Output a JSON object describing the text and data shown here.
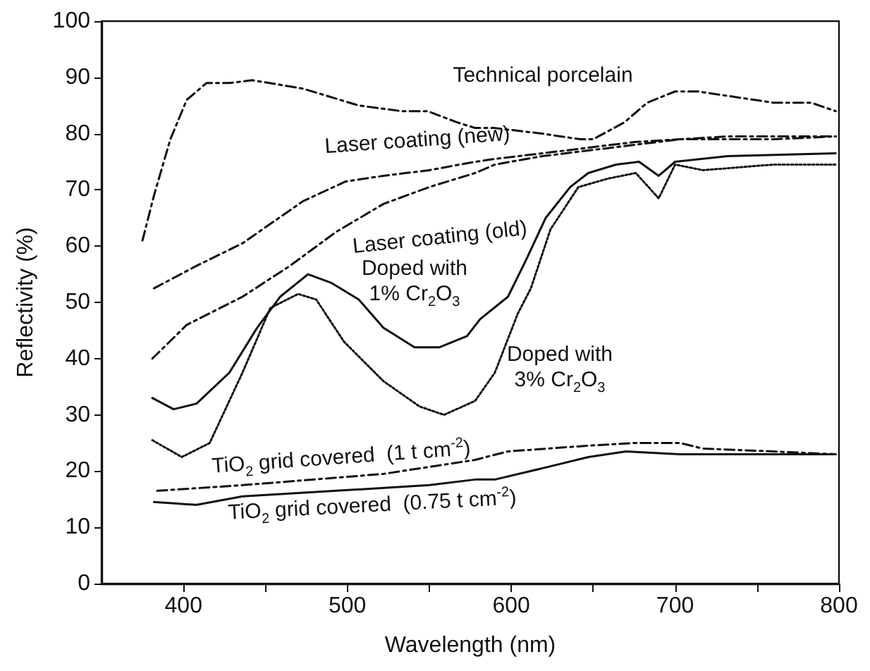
{
  "chart_data": {
    "type": "line",
    "xlabel": "Wavelength (nm)",
    "ylabel": "Reflectivity (%)",
    "xlim": [
      350,
      800
    ],
    "xticks": [
      {
        "value": 400,
        "label": "400"
      },
      {
        "value": 450,
        "label": null
      },
      {
        "value": 500,
        "label": "500"
      },
      {
        "value": 550,
        "label": null
      },
      {
        "value": 600,
        "label": "600"
      },
      {
        "value": 650,
        "label": null
      },
      {
        "value": 700,
        "label": "700"
      },
      {
        "value": 750,
        "label": null
      },
      {
        "value": 800,
        "label": "800"
      }
    ],
    "ylim": [
      0,
      100
    ],
    "yticks": [
      0,
      10,
      20,
      30,
      40,
      50,
      60,
      70,
      80,
      90,
      100
    ],
    "grid": false,
    "marker": "none",
    "series": [
      {
        "name": "Technical porcelain",
        "color": "#111111",
        "line_style": "dashed",
        "x": [
          375,
          382,
          392,
          402,
          414,
          428,
          442,
          473,
          507,
          533,
          549,
          567,
          578,
          590,
          619,
          642,
          650,
          669,
          683,
          700,
          714,
          737,
          760,
          783,
          798
        ],
        "values": [
          61,
          69,
          79,
          86,
          89,
          89,
          89.5,
          88,
          85,
          84,
          84,
          82,
          81,
          81,
          80,
          79,
          79,
          82,
          85.5,
          87.5,
          87.5,
          86.5,
          85.5,
          85.5,
          84
        ]
      },
      {
        "name": "Laser coating (new)",
        "color": "#111111",
        "line_style": "dashed",
        "x": [
          382,
          408,
          436,
          473,
          499,
          522,
          550,
          578,
          590,
          619,
          647,
          675,
          703,
          732,
          760,
          798
        ],
        "values": [
          52.5,
          56.5,
          60.5,
          68,
          71.5,
          72.5,
          73.5,
          75,
          75.5,
          76.5,
          77.5,
          78.5,
          79,
          79.5,
          79.5,
          79.5
        ]
      },
      {
        "name": "Laser coating (old)",
        "color": "#111111",
        "line_style": "dashed",
        "x": [
          381,
          402,
          436,
          465,
          493,
          522,
          550,
          578,
          590,
          619,
          647,
          675,
          703,
          732,
          760,
          798
        ],
        "values": [
          40,
          46,
          51,
          56.5,
          62.5,
          67.5,
          70.5,
          73,
          74.5,
          76,
          77,
          78,
          79,
          79,
          79,
          79.5
        ]
      },
      {
        "name": "Doped with\n1% Cr$_{2}$O$_{3}$",
        "color": "#111111",
        "line_style": "solid",
        "x": [
          381,
          394,
          408,
          428,
          445,
          459,
          476,
          490,
          507,
          522,
          541,
          556,
          573,
          581,
          598,
          609,
          621,
          636,
          647,
          664,
          678,
          690,
          700,
          732,
          798
        ],
        "values": [
          33,
          31,
          32,
          37.5,
          45.5,
          51,
          55,
          53.5,
          50.5,
          45.5,
          42,
          42,
          44,
          47,
          51,
          57.5,
          65,
          70.5,
          73,
          74.5,
          75,
          72.5,
          75,
          76,
          76.5
        ]
      },
      {
        "name": "Doped with\n3% Cr$_{2}$O$_{3}$",
        "color": "#111111",
        "line_style": "dotted",
        "x": [
          381,
          399,
          416,
          436,
          453,
          470,
          481,
          498,
          522,
          544,
          559,
          578,
          590,
          604,
          612,
          624,
          641,
          659,
          676,
          690,
          700,
          717,
          760,
          798
        ],
        "values": [
          25.5,
          22.5,
          25,
          37.5,
          49,
          51.5,
          50.5,
          43,
          36,
          31.5,
          30,
          32.5,
          37.5,
          48,
          52.5,
          63,
          70.5,
          72,
          73,
          68.5,
          74.5,
          73.5,
          74.5,
          74.5
        ]
      },
      {
        "name": "TiO$_{2}$ grid covered  (1 t cm$^{-2}$)",
        "color": "#111111",
        "line_style": "dashed",
        "x": [
          384,
          436,
          522,
          578,
          598,
          646,
          675,
          703,
          717,
          760,
          798
        ],
        "values": [
          16.5,
          17.5,
          19.5,
          22,
          23.5,
          24.5,
          25,
          25,
          24,
          23.5,
          23
        ]
      },
      {
        "name": "TiO$_{2}$ grid covered  (0.75 t cm$^{-2}$)",
        "color": "#111111",
        "line_style": "solid",
        "x": [
          382,
          408,
          436,
          493,
          550,
          578,
          590,
          619,
          647,
          670,
          703,
          760,
          798
        ],
        "values": [
          14.5,
          14,
          15.5,
          16.5,
          17.5,
          18.5,
          18.5,
          20.5,
          22.5,
          23.5,
          23,
          23,
          23
        ]
      }
    ]
  }
}
